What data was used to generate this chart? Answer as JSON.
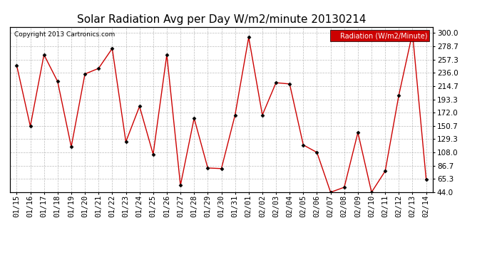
{
  "title": "Solar Radiation Avg per Day W/m2/minute 20130214",
  "copyright_text": "Copyright 2013 Cartronics.com",
  "legend_text": "Radiation (W/m2/Minute)",
  "dates": [
    "01/15",
    "01/16",
    "01/17",
    "01/18",
    "01/19",
    "01/20",
    "01/21",
    "01/22",
    "01/23",
    "01/24",
    "01/25",
    "01/26",
    "01/27",
    "01/28",
    "01/29",
    "01/30",
    "01/31",
    "02/01",
    "02/02",
    "02/03",
    "02/04",
    "02/05",
    "02/06",
    "02/07",
    "02/08",
    "02/09",
    "02/10",
    "02/11",
    "02/12",
    "02/13",
    "02/14"
  ],
  "values": [
    248,
    150,
    265,
    222,
    117,
    234,
    243,
    275,
    125,
    182,
    105,
    265,
    55,
    163,
    83,
    82,
    168,
    293,
    168,
    220,
    218,
    120,
    108,
    44,
    52,
    140,
    44,
    78,
    200,
    300,
    65
  ],
  "y_ticks": [
    44.0,
    65.3,
    86.7,
    108.0,
    129.3,
    150.7,
    172.0,
    193.3,
    214.7,
    236.0,
    257.3,
    278.7,
    300.0
  ],
  "line_color": "#cc0000",
  "marker_color": "#000000",
  "background_color": "#ffffff",
  "plot_bg_color": "#ffffff",
  "grid_color": "#aaaaaa",
  "title_fontsize": 11,
  "tick_fontsize": 7.5,
  "legend_bg_color": "#cc0000",
  "legend_text_color": "#ffffff",
  "ylim_min": 44.0,
  "ylim_max": 310.0
}
